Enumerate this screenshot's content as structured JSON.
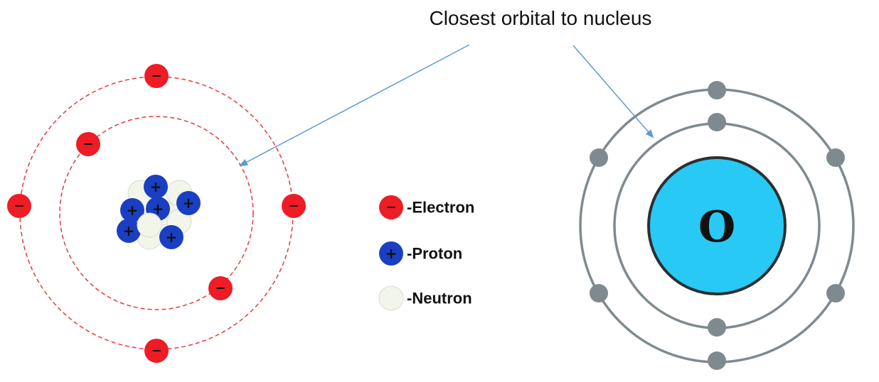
{
  "callout": {
    "text": "Closest orbital to nucleus"
  },
  "legend": {
    "electron": "-Electron",
    "proton": "-Proton",
    "neutron": "-Neutron"
  },
  "electron_sign": "−",
  "proton_sign": "+",
  "oxygen_model": {
    "symbol": "O"
  },
  "colors": {
    "electron_red": "#ee1c25",
    "proton_blue": "#1a3fc2",
    "neutron_white": "#f1f5ea",
    "orbit_dash_red": "#e83a3a",
    "oxygen_nucleus": "#29c9f5",
    "oxygen_shell": "#7e8a90",
    "arrow": "#5b9bd5"
  }
}
